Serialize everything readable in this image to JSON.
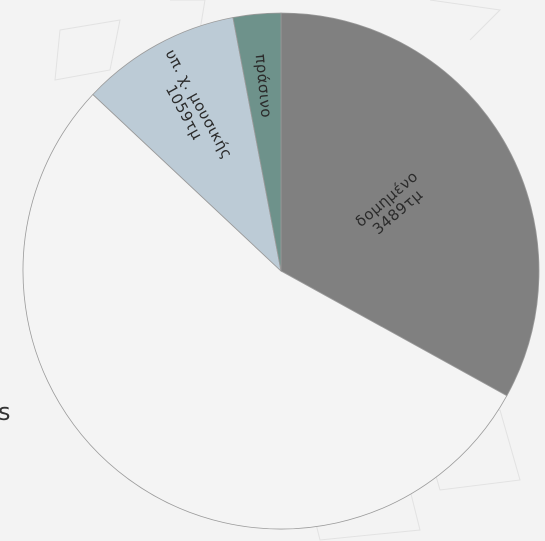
{
  "chart_data": {
    "type": "pie",
    "start_angle_deg": 0,
    "direction": "clockwise",
    "units": "τμ",
    "slices": [
      {
        "label": "δομημένο",
        "value_label": "3489τμ",
        "value": 3489,
        "color": "#808080"
      },
      {
        "label": "",
        "value_label": "",
        "value": 5700,
        "color": "#f4f4f4"
      },
      {
        "label": "υπ. χ. μουσικής",
        "value_label": "1059τμ",
        "value": 1059,
        "color": "#bccbd6"
      },
      {
        "label": "πράσινο",
        "value_label": "",
        "value": 315,
        "color": "#6e928b"
      }
    ]
  },
  "partial_glyph": "s"
}
